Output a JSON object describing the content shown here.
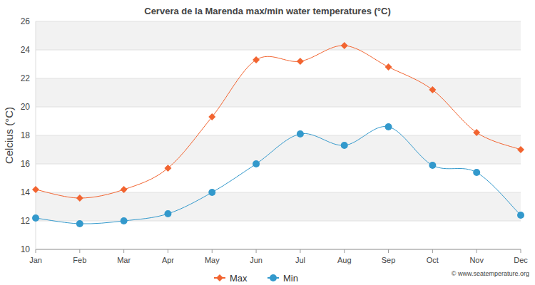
{
  "chart_data": {
    "type": "line",
    "title": "Cervera de la Marenda max/min water temperatures (°C)",
    "y_label": "Celcius (°C)",
    "annotations": [
      "© www.seatemperature.org"
    ],
    "categories": [
      "Jan",
      "Feb",
      "Mar",
      "Apr",
      "May",
      "Jun",
      "Jul",
      "Aug",
      "Sep",
      "Oct",
      "Nov",
      "Dec"
    ],
    "series": [
      {
        "name": "Max",
        "color": "#f26430",
        "marker": "diamond",
        "values": [
          14.2,
          13.6,
          14.2,
          15.7,
          19.3,
          23.3,
          23.2,
          24.3,
          22.8,
          21.2,
          18.2,
          17.0
        ]
      },
      {
        "name": "Min",
        "color": "#3399cc",
        "marker": "circle",
        "values": [
          12.2,
          11.8,
          12.0,
          12.5,
          14.0,
          16.0,
          18.1,
          17.3,
          18.6,
          15.9,
          15.4,
          12.4
        ]
      }
    ],
    "ylim": [
      10,
      26
    ],
    "yticks": [
      10,
      12,
      14,
      16,
      18,
      20,
      22,
      24,
      26
    ],
    "grid": true,
    "legend": "bottom"
  }
}
